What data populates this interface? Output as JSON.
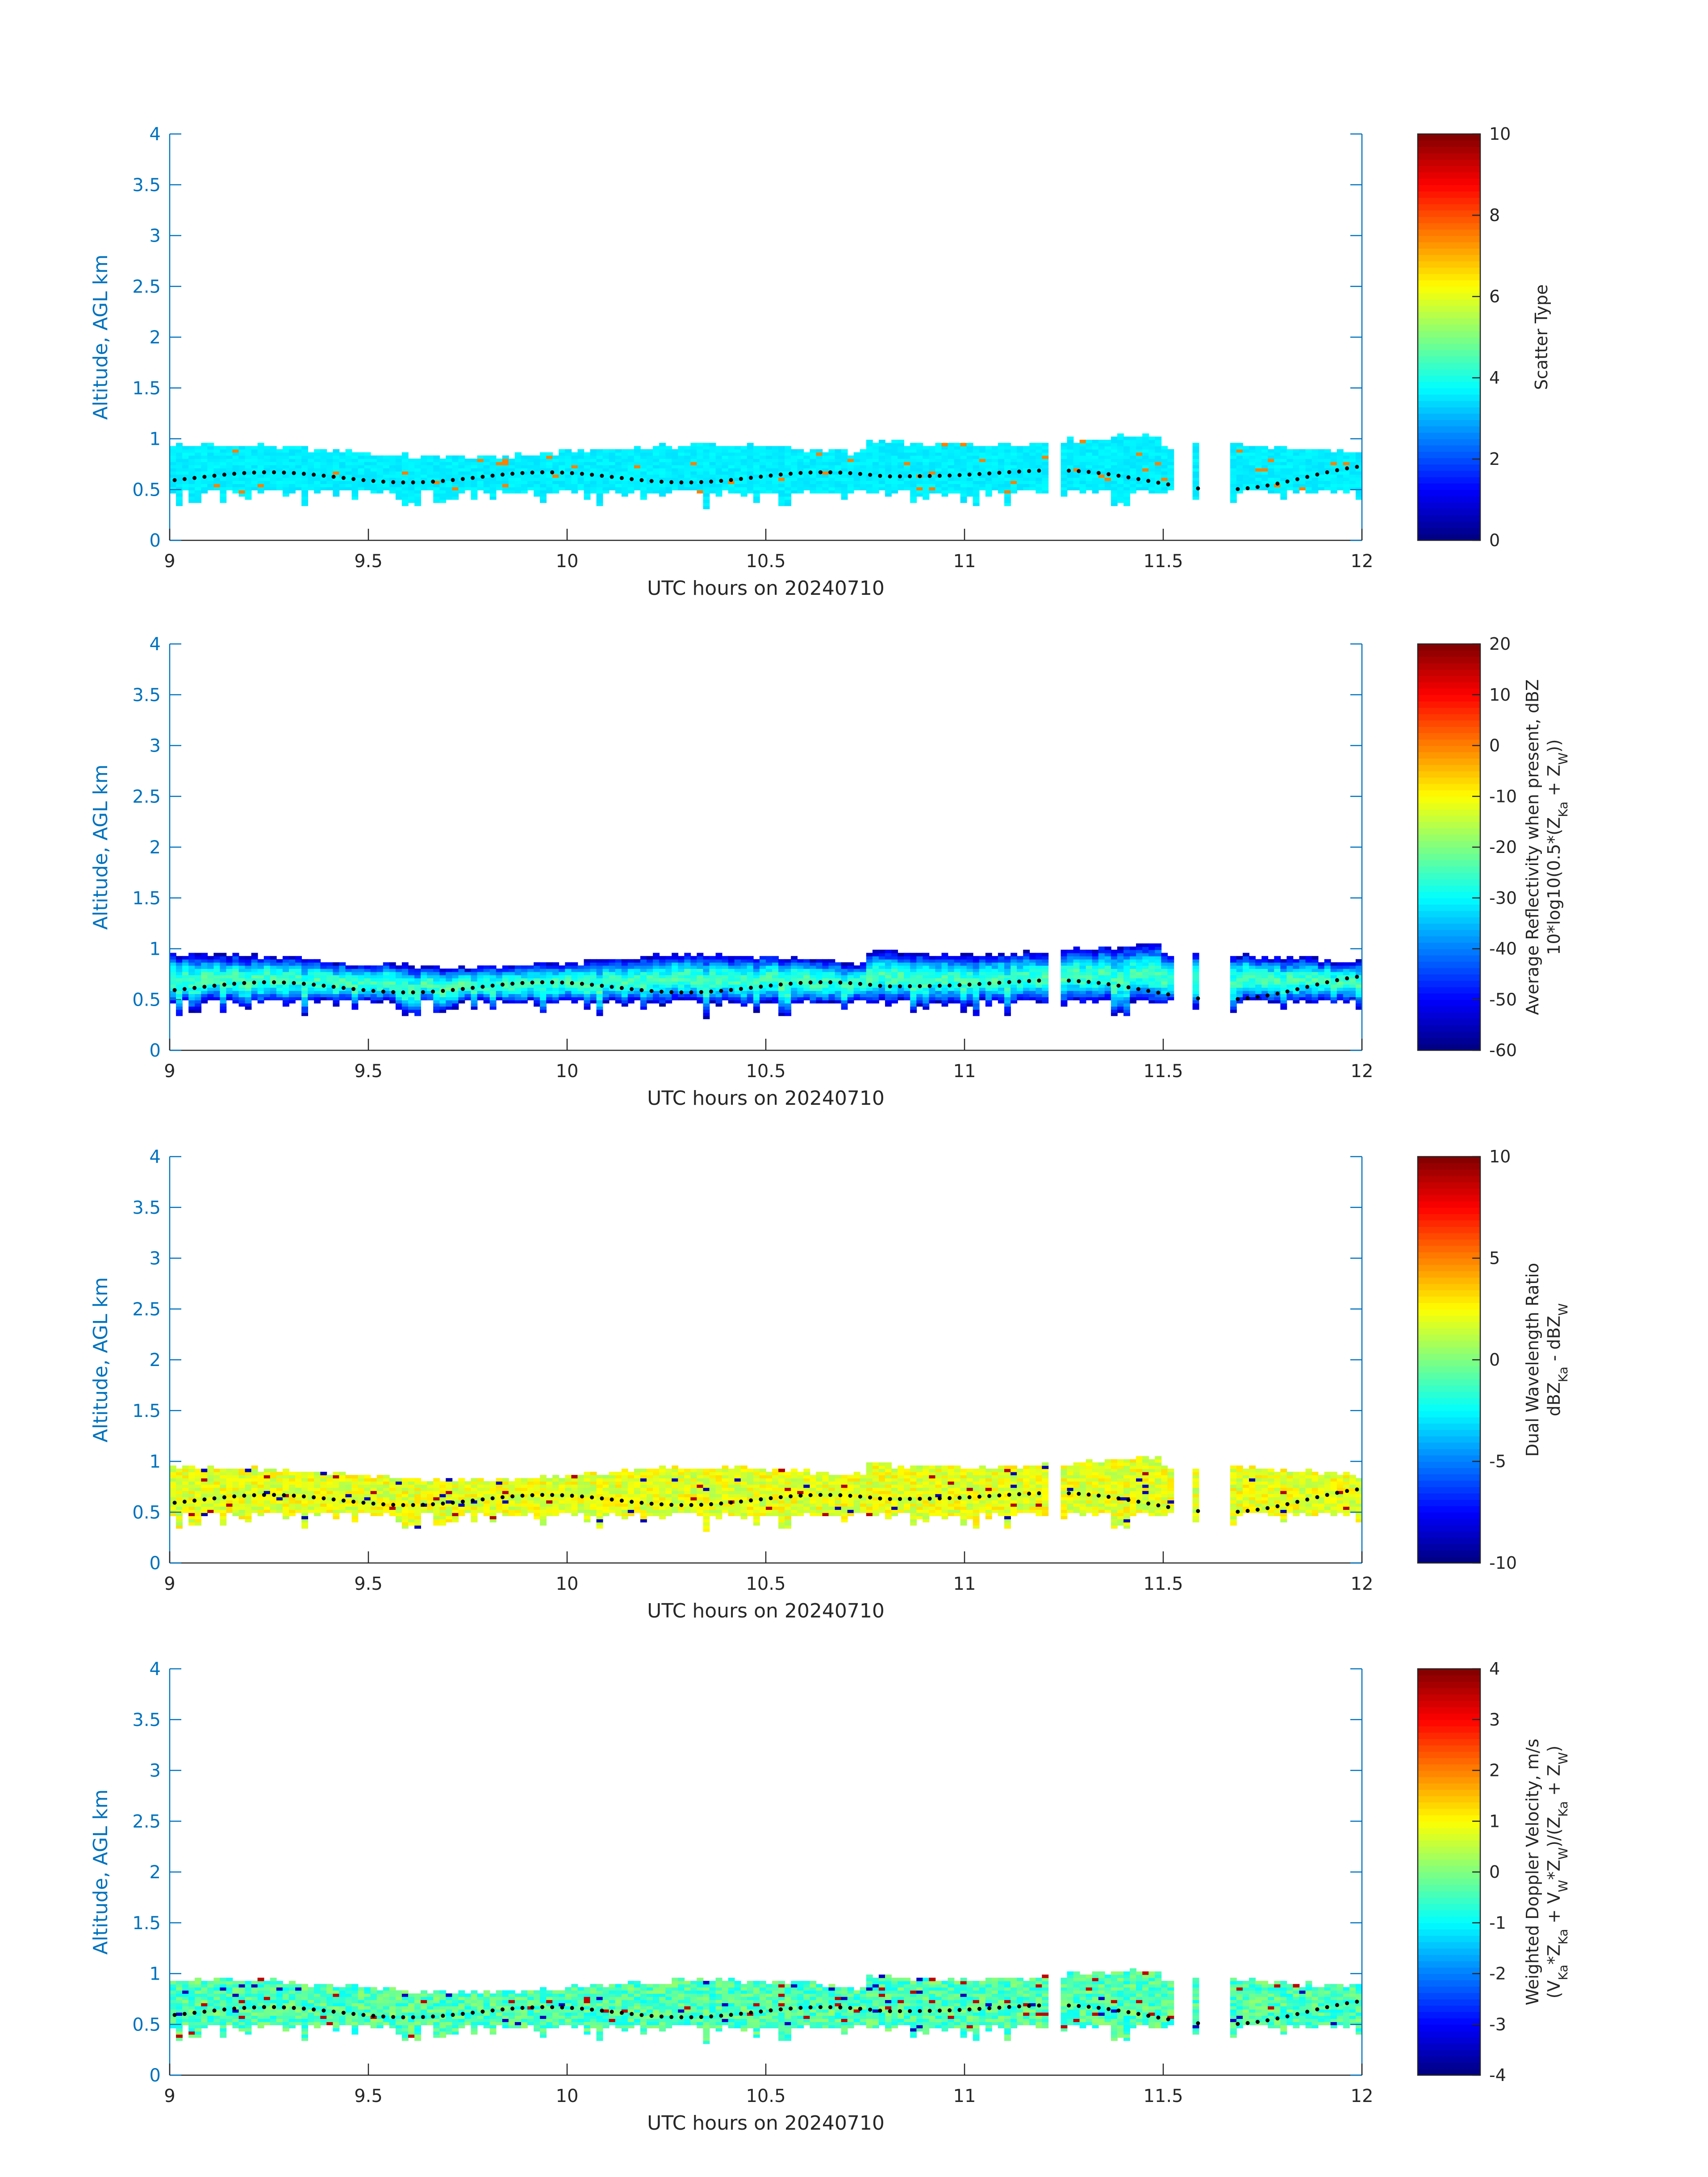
{
  "chart_data": [
    {
      "type": "heatmap",
      "xlabel": "UTC hours on 20240710",
      "ylabel": "Altitude, AGL km",
      "xlim": [
        9,
        12
      ],
      "ylim": [
        0,
        4
      ],
      "xticks": [
        "9",
        "9.5",
        "10",
        "10.5",
        "11",
        "11.5",
        "12"
      ],
      "yticks": [
        "0",
        "0.5",
        "1",
        "1.5",
        "2",
        "2.5",
        "3",
        "3.5",
        "4"
      ],
      "colorbar": {
        "label_lines": [
          [
            "Scatter Type"
          ]
        ],
        "clim": [
          0,
          10
        ],
        "ticks": [
          "0",
          "2",
          "4",
          "6",
          "8",
          "10"
        ],
        "colormap": "jet"
      },
      "field": {
        "base": 3.6,
        "spread": 0.15,
        "top_bias": 0,
        "speckle": 0.02,
        "speckle_hi": 7.5,
        "speckle_lo": 7.5
      },
      "overlay": "cloud-base height (black dots)"
    },
    {
      "type": "heatmap",
      "xlabel": "UTC hours on 20240710",
      "ylabel": "Altitude, AGL km",
      "xlim": [
        9,
        12
      ],
      "ylim": [
        0,
        4
      ],
      "xticks": [
        "9",
        "9.5",
        "10",
        "10.5",
        "11",
        "11.5",
        "12"
      ],
      "yticks": [
        "0",
        "0.5",
        "1",
        "1.5",
        "2",
        "2.5",
        "3",
        "3.5",
        "4"
      ],
      "colorbar": {
        "label_lines": [
          [
            "Average Reflectivity when present, dBZ"
          ],
          [
            "10*log10(0.5*(Z",
            {
              "sub": "Ka"
            },
            " + Z",
            {
              "sub": "W"
            },
            "))"
          ]
        ],
        "clim": [
          -60,
          20
        ],
        "ticks": [
          "-60",
          "-50",
          "-40",
          "-30",
          "-20",
          "-10",
          "0",
          "10",
          "20"
        ],
        "colormap": "jet"
      },
      "field": {
        "base": -55,
        "spread": 4,
        "top_bias": 30,
        "speckle": 0.0,
        "speckle_hi": -20,
        "speckle_lo": -58
      },
      "overlay": "cloud-base height (black dots)"
    },
    {
      "type": "heatmap",
      "xlabel": "UTC hours on 20240710",
      "ylabel": "Altitude, AGL km",
      "xlim": [
        9,
        12
      ],
      "ylim": [
        0,
        4
      ],
      "xticks": [
        "9",
        "9.5",
        "10",
        "10.5",
        "11",
        "11.5",
        "12"
      ],
      "yticks": [
        "0",
        "0.5",
        "1",
        "1.5",
        "2",
        "2.5",
        "3",
        "3.5",
        "4"
      ],
      "colorbar": {
        "label_lines": [
          [
            "Dual Wavelength Ratio"
          ],
          [
            "dBZ",
            {
              "sub": "Ka"
            },
            " - dBZ",
            {
              "sub": "W"
            }
          ]
        ],
        "clim": [
          -10,
          10
        ],
        "ticks": [
          "-10",
          "-5",
          "0",
          "5",
          "10"
        ],
        "colormap": "jet"
      },
      "field": {
        "base": 2.0,
        "spread": 1.2,
        "top_bias": 0,
        "speckle": 0.03,
        "speckle_hi": 9,
        "speckle_lo": -9
      },
      "overlay": "cloud-base height (black dots)"
    },
    {
      "type": "heatmap",
      "xlabel": "UTC hours on 20240710",
      "ylabel": "Altitude, AGL km",
      "xlim": [
        9,
        12
      ],
      "ylim": [
        0,
        4
      ],
      "xticks": [
        "9",
        "9.5",
        "10",
        "10.5",
        "11",
        "11.5",
        "12"
      ],
      "yticks": [
        "0",
        "0.5",
        "1",
        "1.5",
        "2",
        "2.5",
        "3",
        "3.5",
        "4"
      ],
      "colorbar": {
        "label_lines": [
          [
            "Weighted Doppler Velocity, m/s"
          ],
          [
            "(V",
            {
              "sub": "Ka"
            },
            "*Z",
            {
              "sub": "Ka"
            },
            " + V",
            {
              "sub": "W"
            },
            "*Z",
            {
              "sub": "W"
            },
            ")/(Z",
            {
              "sub": "Ka"
            },
            " + Z",
            {
              "sub": "W"
            },
            ")"
          ]
        ],
        "clim": [
          -4,
          4
        ],
        "ticks": [
          "-4",
          "-3",
          "-2",
          "-1",
          "0",
          "1",
          "2",
          "3",
          "4"
        ],
        "colormap": "jet"
      },
      "field": {
        "base": -0.4,
        "spread": 0.6,
        "top_bias": 0,
        "speckle": 0.04,
        "speckle_hi": 3.5,
        "speckle_lo": -3.5
      },
      "overlay": "cloud-base height (black dots)"
    }
  ]
}
